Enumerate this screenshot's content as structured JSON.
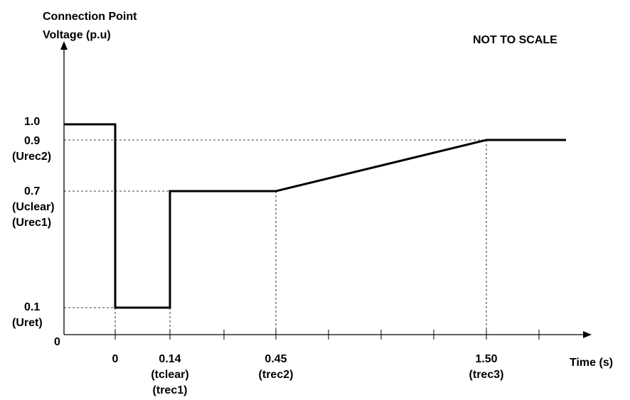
{
  "chart_data": {
    "type": "line",
    "ylabel_lines": [
      "Connection Point",
      "Voltage (p.u)"
    ],
    "xlabel": "Time (s)",
    "annotation": "NOT TO SCALE",
    "y_origin_label": "0",
    "y_ticks": [
      {
        "value": 1.0,
        "lines": [
          "1.0"
        ]
      },
      {
        "value": 0.9,
        "lines": [
          "0.9",
          "(Urec2)"
        ]
      },
      {
        "value": 0.7,
        "lines": [
          "0.7",
          "(Uclear)",
          "(Urec1)"
        ]
      },
      {
        "value": 0.1,
        "lines": [
          "0.1",
          "(Uret)"
        ]
      }
    ],
    "x_ticks": [
      {
        "value": 0,
        "lines": [
          "0"
        ]
      },
      {
        "value": 0.14,
        "lines": [
          "0.14",
          "(tclear)",
          "(trec1)"
        ]
      },
      {
        "value": 0.45,
        "lines": [
          "0.45",
          "(trec2)"
        ]
      },
      {
        "value": 1.5,
        "lines": [
          "1.50",
          "(trec3)"
        ]
      }
    ],
    "series": [
      {
        "points": [
          {
            "x": "start",
            "y": 1.0
          },
          {
            "x": 0,
            "y": 1.0
          },
          {
            "x": 0,
            "y": 0.1
          },
          {
            "x": 0.14,
            "y": 0.1
          },
          {
            "x": 0.14,
            "y": 0.7
          },
          {
            "x": 0.45,
            "y": 0.7
          },
          {
            "x": 1.5,
            "y": 0.9
          },
          {
            "x": "end",
            "y": 0.9
          }
        ]
      }
    ],
    "grid": false,
    "scale_note": "not to scale"
  }
}
